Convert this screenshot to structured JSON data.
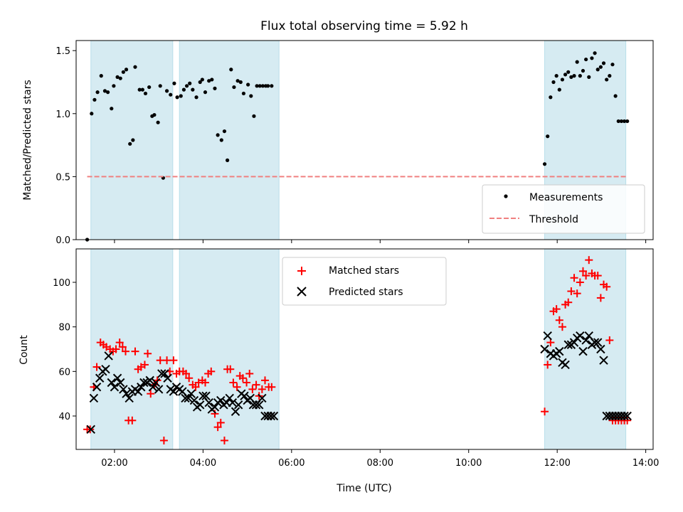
{
  "chart_data": [
    {
      "type": "scatter",
      "title": "Flux total observing time = 5.92 h",
      "xlabel": "",
      "ylabel": "Matched/Predicted stars",
      "xlim": [
        "01:08",
        "14:10"
      ],
      "ylim": [
        0,
        1.58
      ],
      "yticks": [
        0.0,
        0.5,
        1.0,
        1.5
      ],
      "ytick_labels": [
        "0.0",
        "0.5",
        "1.0",
        "1.5"
      ],
      "legend_position": "lower-right",
      "shaded_intervals": [
        [
          "01:28",
          "03:19"
        ],
        [
          "03:28",
          "05:43"
        ],
        [
          "11:43",
          "13:33"
        ]
      ],
      "shade_color": "#add8e6",
      "series": [
        {
          "name": "Measurements",
          "marker": "dot",
          "color": "#000000",
          "x": [
            "01:23",
            "01:29",
            "01:33",
            "01:37",
            "01:42",
            "01:47",
            "01:51",
            "01:56",
            "01:59",
            "02:04",
            "02:08",
            "02:12",
            "02:16",
            "02:21",
            "02:25",
            "02:28",
            "02:34",
            "02:38",
            "02:42",
            "02:47",
            "02:51",
            "02:54",
            "02:59",
            "03:02",
            "03:06",
            "03:11",
            "03:16",
            "03:21",
            "03:25",
            "03:30",
            "03:34",
            "03:38",
            "03:42",
            "03:46",
            "03:51",
            "03:56",
            "03:59",
            "04:03",
            "04:08",
            "04:12",
            "04:16",
            "04:20",
            "04:25",
            "04:29",
            "04:33",
            "04:38",
            "04:42",
            "04:47",
            "04:51",
            "04:55",
            "05:01",
            "05:05",
            "05:09",
            "05:13",
            "05:17",
            "05:21",
            "05:25",
            "05:28",
            "05:33"
          ],
          "y": [
            0.0,
            1.0,
            1.11,
            1.17,
            1.3,
            1.18,
            1.17,
            1.04,
            1.22,
            1.29,
            1.28,
            1.33,
            1.35,
            0.76,
            0.79,
            1.37,
            1.19,
            1.19,
            1.16,
            1.21,
            0.98,
            0.99,
            0.93,
            1.22,
            0.49,
            1.18,
            1.15,
            1.24,
            1.13,
            1.14,
            1.19,
            1.22,
            1.24,
            1.19,
            1.13,
            1.25,
            1.27,
            1.17,
            1.26,
            1.27,
            1.2,
            0.83,
            0.79,
            0.86,
            0.63,
            1.35,
            1.21,
            1.26,
            1.25,
            1.16,
            1.23,
            1.14,
            0.98,
            1.22,
            1.22,
            1.22,
            1.22,
            1.22,
            1.22
          ]
        },
        {
          "name": "Measurements",
          "marker": "dot",
          "color": "#000000",
          "x": [
            "11:43",
            "11:47",
            "11:51",
            "11:55",
            "11:59",
            "12:03",
            "12:07",
            "12:11",
            "12:15",
            "12:19",
            "12:23",
            "12:27",
            "12:31",
            "12:35",
            "12:39",
            "12:43",
            "12:47",
            "12:51",
            "12:55",
            "12:59",
            "13:03",
            "13:07",
            "13:11",
            "13:15",
            "13:19",
            "13:23",
            "13:27",
            "13:31",
            "13:35"
          ],
          "y": [
            0.6,
            0.82,
            1.13,
            1.25,
            1.3,
            1.19,
            1.27,
            1.31,
            1.33,
            1.29,
            1.3,
            1.41,
            1.3,
            1.34,
            1.43,
            1.29,
            1.44,
            1.48,
            1.35,
            1.37,
            1.4,
            1.27,
            1.3,
            1.39,
            1.14,
            0.94,
            0.94,
            0.94,
            0.94
          ]
        },
        {
          "name": "Threshold",
          "style": "dashed",
          "color": "#f08080",
          "x": [
            "01:23",
            "13:35"
          ],
          "y": [
            0.5,
            0.5
          ]
        }
      ]
    },
    {
      "type": "scatter",
      "title": "",
      "xlabel": "Time (UTC)",
      "ylabel": "Count",
      "xlim": [
        "01:08",
        "14:10"
      ],
      "ylim": [
        25,
        115
      ],
      "yticks": [
        40,
        60,
        80,
        100
      ],
      "ytick_labels": [
        "40",
        "60",
        "80",
        "100"
      ],
      "xticks": [
        "02:00",
        "04:00",
        "06:00",
        "08:00",
        "10:00",
        "12:00",
        "14:00"
      ],
      "legend_position": "upper-center",
      "shaded_intervals": [
        [
          "01:28",
          "03:19"
        ],
        [
          "03:28",
          "05:43"
        ],
        [
          "11:43",
          "13:33"
        ]
      ],
      "shade_color": "#add8e6",
      "series": [
        {
          "name": "Matched stars",
          "marker": "plus",
          "color": "#ff0000",
          "x": [
            "01:23",
            "01:27",
            "01:32",
            "01:36",
            "01:41",
            "01:45",
            "01:49",
            "01:54",
            "01:58",
            "02:02",
            "02:07",
            "02:11",
            "02:15",
            "02:19",
            "02:24",
            "02:28",
            "02:32",
            "02:36",
            "02:41",
            "02:45",
            "02:49",
            "02:54",
            "02:58",
            "03:02",
            "03:07",
            "03:11",
            "03:15",
            "03:20",
            "03:24",
            "03:28",
            "03:33",
            "03:37",
            "03:41",
            "03:46",
            "03:50",
            "03:54",
            "03:59",
            "04:03",
            "04:07",
            "04:11",
            "04:16",
            "04:20",
            "04:24",
            "04:29",
            "04:33",
            "04:37",
            "04:41",
            "04:46",
            "04:50",
            "04:54",
            "04:59",
            "05:03",
            "05:07",
            "05:12",
            "05:16",
            "05:20",
            "05:24",
            "05:29",
            "05:33",
            "11:43",
            "11:47",
            "11:51",
            "11:55",
            "11:59",
            "12:03",
            "12:07",
            "12:11",
            "12:15",
            "12:19",
            "12:23",
            "12:27",
            "12:31",
            "12:35",
            "12:39",
            "12:43",
            "12:47",
            "12:51",
            "12:55",
            "12:59",
            "13:03",
            "13:07",
            "13:11",
            "13:15",
            "13:19",
            "13:23",
            "13:27",
            "13:31",
            "13:35"
          ],
          "y": [
            34,
            34,
            53,
            62,
            73,
            72,
            71,
            70,
            69,
            70,
            73,
            71,
            69,
            38,
            38,
            69,
            61,
            62,
            63,
            68,
            50,
            54,
            56,
            65,
            29,
            65,
            60,
            65,
            59,
            60,
            60,
            59,
            57,
            54,
            53,
            55,
            56,
            55,
            59,
            60,
            41,
            35,
            37,
            29,
            61,
            61,
            55,
            53,
            58,
            57,
            55,
            59,
            52,
            54,
            49,
            52,
            56,
            53,
            53,
            42,
            63,
            73,
            87,
            88,
            83,
            80,
            90,
            91,
            96,
            102,
            95,
            100,
            105,
            103,
            110,
            104,
            103,
            103,
            93,
            99,
            98,
            74,
            38,
            38,
            38,
            38,
            38,
            38
          ]
        },
        {
          "name": "Predicted stars",
          "marker": "x",
          "color": "#000000",
          "x": [
            "01:28",
            "01:32",
            "01:36",
            "01:40",
            "01:44",
            "01:48",
            "01:52",
            "01:56",
            "02:00",
            "02:04",
            "02:08",
            "02:12",
            "02:16",
            "02:20",
            "02:24",
            "02:28",
            "02:32",
            "02:36",
            "02:40",
            "02:44",
            "02:48",
            "02:52",
            "02:56",
            "03:00",
            "03:04",
            "03:08",
            "03:12",
            "03:16",
            "03:20",
            "03:24",
            "03:28",
            "03:32",
            "03:36",
            "03:40",
            "03:44",
            "03:48",
            "03:52",
            "03:56",
            "04:00",
            "04:04",
            "04:08",
            "04:12",
            "04:16",
            "04:20",
            "04:24",
            "04:28",
            "04:32",
            "04:36",
            "04:40",
            "04:44",
            "04:48",
            "04:52",
            "04:56",
            "05:00",
            "05:04",
            "05:08",
            "05:12",
            "05:16",
            "05:20",
            "05:24",
            "05:28",
            "05:32",
            "05:36",
            "11:43",
            "11:47",
            "11:51",
            "11:55",
            "11:59",
            "12:03",
            "12:07",
            "12:11",
            "12:15",
            "12:19",
            "12:23",
            "12:27",
            "12:31",
            "12:35",
            "12:39",
            "12:43",
            "12:47",
            "12:51",
            "12:55",
            "12:59",
            "13:03",
            "13:07",
            "13:11",
            "13:15",
            "13:19",
            "13:23",
            "13:27",
            "13:31",
            "13:35"
          ],
          "y": [
            34,
            48,
            53,
            57,
            60,
            61,
            67,
            55,
            53,
            57,
            55,
            52,
            50,
            48,
            51,
            52,
            51,
            53,
            55,
            55,
            56,
            53,
            55,
            52,
            59,
            59,
            57,
            52,
            51,
            53,
            52,
            51,
            48,
            48,
            50,
            47,
            44,
            45,
            49,
            49,
            46,
            43,
            44,
            46,
            47,
            45,
            46,
            48,
            46,
            42,
            45,
            50,
            49,
            47,
            48,
            45,
            45,
            45,
            48,
            40,
            40,
            40,
            40,
            70,
            76,
            68,
            67,
            68,
            69,
            64,
            63,
            72,
            72,
            73,
            75,
            76,
            69,
            74,
            76,
            72,
            73,
            73,
            70,
            65,
            40,
            40,
            40,
            40,
            40,
            40,
            40,
            40
          ]
        }
      ]
    }
  ]
}
